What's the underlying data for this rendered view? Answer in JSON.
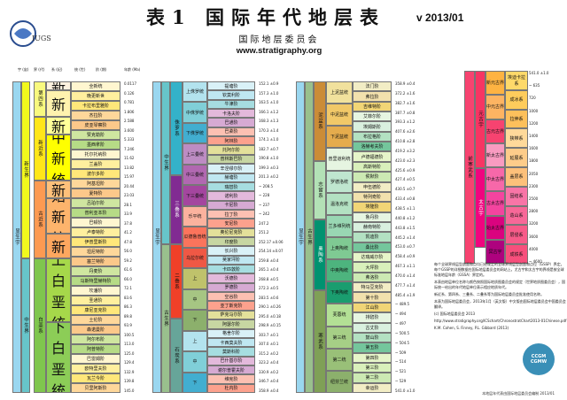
{
  "header": {
    "title": "表1 国际年代地层表",
    "version": "v 2013/01",
    "subtitle": "国际地层委员会",
    "url": "www.stratigraphy.org",
    "logo_text": "IUGS"
  },
  "col_labels": {
    "eonothem": "宇 (宙)",
    "erathem": "界 (代)",
    "system": "系 (纪)",
    "series": "统 (世)",
    "stage": "阶 (期)",
    "age": "年龄 (Ma)"
  },
  "panel1": {
    "eon": "显生宇",
    "eras": [
      "新生界"
    ],
    "systems": [
      "第四系",
      "新近系",
      "古近系",
      "白垩系"
    ],
    "series": [
      "全新统",
      "更新统",
      "上新统",
      "中新统",
      "渐新统",
      "始新统",
      "古新统",
      "上白垩统",
      "下白垩统"
    ],
    "stages": [
      "全新统",
      "晚更新世",
      "卡拉布里雅阶",
      "杰拉阶",
      "皮亚琴察阶",
      "赞克勒阶",
      "墨西拿阶",
      "托尔托纳阶",
      "兰盖阶",
      "波尔多阶",
      "阿基坦阶",
      "夏特阶",
      "吕珀尔阶",
      "普利亚本阶",
      "巴顿阶",
      "卢泰特阶",
      "伊普里斯阶",
      "坦尼特阶",
      "塞兰特阶",
      "丹麦阶",
      "马斯特里赫特阶",
      "坎潘阶",
      "圣通阶",
      "康尼亚克阶",
      "土伦阶",
      "森诺曼阶",
      "阿尔布阶",
      "阿普特阶",
      "巴雷姆阶",
      "欧特里夫阶",
      "瓦兰今阶",
      "贝里阿斯阶"
    ],
    "ages": [
      "0.0117",
      "0.126",
      "0.781",
      "1.806",
      "2.588",
      "3.600",
      "5.333",
      "7.246",
      "11.62",
      "13.82",
      "15.97",
      "20.44",
      "23.03",
      "28.1",
      "33.9",
      "37.8",
      "41.2",
      "47.8",
      "56.0",
      "59.2",
      "61.6",
      "66.0",
      "72.1",
      "83.6",
      "86.3",
      "89.8",
      "93.9",
      "100.5",
      "113.0",
      "125.0",
      "129.4",
      "132.9",
      "139.8",
      "145.0"
    ]
  },
  "panel2": {
    "era": "中生界",
    "systems": [
      "侏罗系",
      "三叠系",
      "二叠系",
      "石炭系"
    ],
    "series": [
      "上侏罗统",
      "中侏罗统",
      "下侏罗统",
      "上三叠统",
      "中三叠统",
      "下三叠统",
      "乐平统",
      "瓜德鲁普统",
      "乌拉尔统",
      "上",
      "中",
      "下",
      "上",
      "中",
      "下"
    ],
    "stages": [
      "提塘阶",
      "钦莫利阶",
      "牛津阶",
      "卡洛夫阶",
      "巴通阶",
      "巴柔阶",
      "阿林阶",
      "托阿尔阶",
      "普林斯巴阶",
      "辛涅缪尔阶",
      "赫塘阶",
      "瑞替阶",
      "诺利阶",
      "卡尼阶",
      "拉丁阶",
      "安尼阶",
      "奥伦尼克阶",
      "印度阶",
      "长兴阶",
      "吴家坪阶",
      "卡匹敦阶",
      "沃德阶",
      "罗德阶",
      "空谷阶",
      "亚丁斯克阶",
      "萨克马尔阶",
      "阿瑟尔阶",
      "格舍尔阶",
      "卡西莫夫阶",
      "莫斯科阶",
      "巴什基尔阶",
      "谢尔普霍夫阶",
      "维宪阶",
      "杜内阶"
    ],
    "ages": [
      "152.1 ±0.9",
      "157.3 ±1.0",
      "163.5 ±1.0",
      "166.1 ±1.2",
      "168.3 ±1.3",
      "170.3 ±1.4",
      "174.1 ±1.0",
      "182.7 ±0.7",
      "190.8 ±1.0",
      "199.3 ±0.3",
      "201.3 ±0.2",
      "~ 208.5",
      "~ 228",
      "~ 237",
      "~ 242",
      "247.2",
      "251.2",
      "252.17 ±0.06",
      "254.14 ±0.07",
      "259.8 ±0.4",
      "265.1 ±0.4",
      "268.8 ±0.5",
      "272.3 ±0.5",
      "283.5 ±0.6",
      "290.1 ±0.26",
      "295.0 ±0.18",
      "298.9 ±0.15",
      "303.7 ±0.1",
      "307.0 ±0.1",
      "315.2 ±0.2",
      "323.2 ±0.4",
      "330.9 ±0.2",
      "346.7 ±0.4",
      "358.9 ±0.4"
    ]
  },
  "panel3": {
    "era": "古生界",
    "systems": [
      "泥盆系",
      "志留系",
      "奥陶系",
      "寒武系"
    ],
    "series": [
      "上泥盆统",
      "中泥盆统",
      "下泥盆统",
      "普里道利统",
      "罗德洛统",
      "温洛克统",
      "兰多维列统",
      "上奥陶统",
      "中奥陶统",
      "下奥陶统",
      "芙蓉统",
      "第三统",
      "第二统",
      "纽芬兰统"
    ],
    "stages": [
      "法门阶",
      "弗拉阶",
      "吉维特阶",
      "艾菲尔阶",
      "埃姆斯阶",
      "布拉格阶",
      "洛赫考夫阶",
      "卢德福德阶",
      "高斯特阶",
      "侯默阶",
      "申伍德阶",
      "特列奇阶",
      "埃隆阶",
      "鲁丹阶",
      "赫南特阶",
      "凯迪阶",
      "桑比阶",
      "达瑞威尔阶",
      "大坪阶",
      "弗洛阶",
      "特马豆克阶",
      "第十阶",
      "江山阶",
      "排碧阶",
      "古丈阶",
      "鼓山阶",
      "第五阶",
      "第四阶",
      "第三阶",
      "第二阶",
      "幸运阶"
    ],
    "ages": [
      "358.9 ±0.4",
      "372.2 ±1.6",
      "382.7 ±1.6",
      "387.7 ±0.8",
      "393.3 ±1.2",
      "407.6 ±2.6",
      "410.8 ±2.8",
      "419.2 ±3.2",
      "423.0 ±2.3",
      "425.6 ±0.9",
      "427.4 ±0.5",
      "430.5 ±0.7",
      "433.4 ±0.8",
      "438.5 ±1.1",
      "440.8 ±1.2",
      "443.8 ±1.5",
      "445.2 ±1.4",
      "453.0 ±0.7",
      "458.4 ±0.9",
      "467.3 ±1.1",
      "470.0 ±1.4",
      "477.7 ±1.4",
      "485.4 ±1.9",
      "~ 489.5",
      "~ 494",
      "~ 497",
      "~ 500.5",
      "~ 504.5",
      "~ 509",
      "~ 514",
      "~ 521",
      "~ 529",
      "541.0 ±1.0"
    ]
  },
  "panel4": {
    "eon_pre": "前寒武系",
    "eon_a": "元古宇",
    "eon_b": "太古宇",
    "eras": [
      "新元古界",
      "中元古界",
      "古元古界",
      "新太古界",
      "中太古界",
      "古太古界",
      "始太古界",
      "冥古宇"
    ],
    "systems": [
      "埃迪卡拉系",
      "成冰系",
      "拉伸系",
      "狭带系",
      "延展系",
      "盖层系",
      "固结系",
      "造山系",
      "层侵系",
      "成铁系"
    ],
    "ages": [
      "541.0 ±1.0",
      "~ 635",
      "720",
      "1000",
      "1200",
      "1400",
      "1600",
      "1800",
      "2050",
      "2300",
      "2500",
      "2800",
      "3200",
      "3600",
      "4000",
      "~ 4600"
    ]
  },
  "notes": {
    "p1": "每个全球界线层型剖面和点均已经规定的全球界线层型剖面和点位（GSSP）界定。每个GSSP的详细数据在国际地层委员会的网站上。尤古宇和太古宇的界线是按全球标准地层年龄（GSSA）界定的。",
    "p2": "本表由地层单位名称与颜色按照国际地质图委员会的规定（世界地质图委员会），国际统一给出的年代地层单位表示相应地质年代。",
    "p3": "新近系、第四系、三叠系、二叠系等为国际地层委员会批准使用名称。",
    "p4": "本表为国际地层委员会，2013年1月（英文版）中文版由国际地层委员会中国委员会翻译。",
    "p5": "(c) 国际地层委员会 2013",
    "url": "http://www.stratigraphy.org/ICSchart/ChronostratChart2013-01Chinese.pdf",
    "authors": "K.M. Cohen, S. Finney, P.L. Gibbard (2013)"
  },
  "ccgm_badge": "CCGM CGMW",
  "footer": "本地层年代表由国际地层委员会编制 2013/01"
}
